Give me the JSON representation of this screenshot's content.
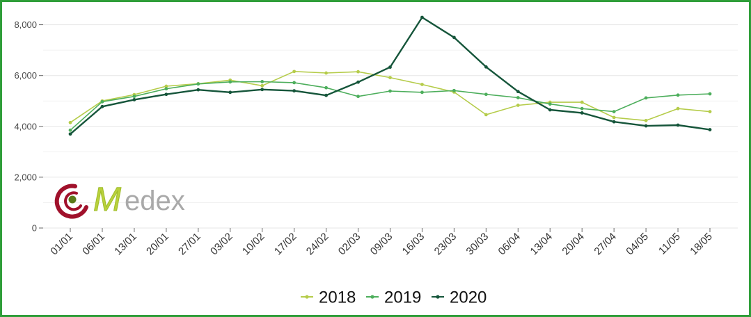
{
  "chart_data": {
    "type": "line",
    "categories": [
      "01/01",
      "06/01",
      "13/01",
      "20/01",
      "27/01",
      "03/02",
      "10/02",
      "17/02",
      "24/02",
      "02/03",
      "09/03",
      "16/03",
      "23/03",
      "30/03",
      "06/04",
      "13/04",
      "20/04",
      "27/04",
      "04/05",
      "11/05",
      "18/05"
    ],
    "yticks": [
      "0",
      "2,000",
      "4,000",
      "6,000",
      "8,000"
    ],
    "ylim": [
      0,
      8700
    ],
    "grid": true,
    "legend_position": "bottom",
    "series": [
      {
        "name": "2018",
        "color": "#b5cc4a",
        "values": [
          4150,
          5000,
          5250,
          5580,
          5680,
          5820,
          5600,
          6160,
          6100,
          6150,
          5920,
          5650,
          5350,
          4460,
          4830,
          4950,
          4950,
          4350,
          4230,
          4700,
          4580
        ]
      },
      {
        "name": "2019",
        "color": "#4dae5c",
        "values": [
          3850,
          4970,
          5180,
          5480,
          5670,
          5750,
          5760,
          5720,
          5520,
          5180,
          5390,
          5340,
          5410,
          5260,
          5130,
          4880,
          4700,
          4580,
          5120,
          5230,
          5280
        ]
      },
      {
        "name": "2020",
        "color": "#15553a",
        "values": [
          3700,
          4780,
          5050,
          5260,
          5440,
          5340,
          5450,
          5400,
          5220,
          5740,
          6330,
          8290,
          7500,
          6340,
          5370,
          4650,
          4530,
          4180,
          4020,
          4050,
          3870
        ]
      }
    ]
  },
  "logo": {
    "text": "Medex",
    "letters": "edex",
    "initial": "M",
    "colors": {
      "mark": "#a0112b",
      "dot": "#5a7a1a",
      "initial": "#b9d13c",
      "text": "#a9a9a9"
    }
  }
}
